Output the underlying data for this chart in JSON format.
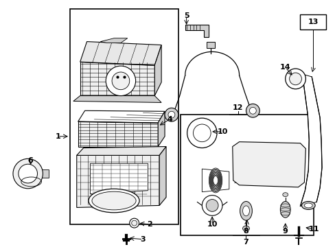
{
  "bg_color": "#ffffff",
  "line_color": "#000000",
  "gray_fill": "#e8e8e8",
  "light_gray": "#f0f0f0",
  "mid_gray": "#d0d0d0"
}
